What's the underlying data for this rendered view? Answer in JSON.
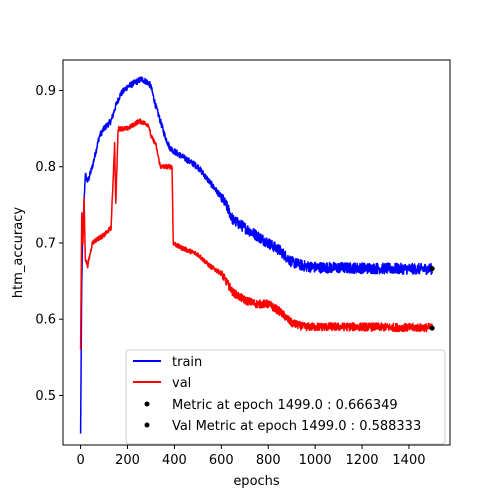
{
  "chart_data": {
    "type": "line",
    "title": "",
    "xlabel": "epochs",
    "ylabel": "htm_accuracy",
    "xlim": [
      -75,
      1575
    ],
    "ylim": [
      0.435,
      0.94
    ],
    "xticks": [
      0,
      200,
      400,
      600,
      800,
      1000,
      1200,
      1400
    ],
    "xtick_labels": [
      "0",
      "200",
      "400",
      "600",
      "800",
      "1000",
      "1200",
      "1400"
    ],
    "yticks": [
      0.5,
      0.6,
      0.7,
      0.8,
      0.9
    ],
    "ytick_labels": [
      "0.5",
      "0.6",
      "0.7",
      "0.8",
      "0.9"
    ],
    "grid": false,
    "legend_position": "lower-right",
    "series": [
      {
        "name": "train",
        "color": "#0000ff",
        "noise": 0.004,
        "points": [
          [
            0,
            0.45
          ],
          [
            5,
            0.65
          ],
          [
            10,
            0.72
          ],
          [
            20,
            0.79
          ],
          [
            30,
            0.78
          ],
          [
            50,
            0.8
          ],
          [
            80,
            0.84
          ],
          [
            100,
            0.85
          ],
          [
            130,
            0.86
          ],
          [
            150,
            0.88
          ],
          [
            170,
            0.895
          ],
          [
            200,
            0.905
          ],
          [
            230,
            0.91
          ],
          [
            260,
            0.915
          ],
          [
            290,
            0.91
          ],
          [
            300,
            0.905
          ],
          [
            320,
            0.88
          ],
          [
            340,
            0.86
          ],
          [
            360,
            0.84
          ],
          [
            380,
            0.825
          ],
          [
            400,
            0.82
          ],
          [
            450,
            0.81
          ],
          [
            500,
            0.8
          ],
          [
            550,
            0.78
          ],
          [
            600,
            0.76
          ],
          [
            620,
            0.75
          ],
          [
            650,
            0.73
          ],
          [
            700,
            0.72
          ],
          [
            750,
            0.71
          ],
          [
            800,
            0.7
          ],
          [
            850,
            0.69
          ],
          [
            900,
            0.675
          ],
          [
            950,
            0.67
          ],
          [
            1000,
            0.668
          ],
          [
            1200,
            0.667
          ],
          [
            1400,
            0.666
          ],
          [
            1499,
            0.666
          ]
        ]
      },
      {
        "name": "val",
        "color": "#ff0000",
        "noise": 0.003,
        "points": [
          [
            0,
            0.56
          ],
          [
            5,
            0.74
          ],
          [
            10,
            0.7
          ],
          [
            15,
            0.76
          ],
          [
            20,
            0.68
          ],
          [
            30,
            0.67
          ],
          [
            50,
            0.7
          ],
          [
            70,
            0.705
          ],
          [
            100,
            0.71
          ],
          [
            130,
            0.72
          ],
          [
            145,
            0.83
          ],
          [
            150,
            0.75
          ],
          [
            160,
            0.85
          ],
          [
            170,
            0.85
          ],
          [
            200,
            0.85
          ],
          [
            250,
            0.86
          ],
          [
            290,
            0.855
          ],
          [
            300,
            0.84
          ],
          [
            320,
            0.83
          ],
          [
            340,
            0.8
          ],
          [
            380,
            0.8
          ],
          [
            390,
            0.8
          ],
          [
            395,
            0.7
          ],
          [
            420,
            0.695
          ],
          [
            460,
            0.69
          ],
          [
            500,
            0.685
          ],
          [
            550,
            0.67
          ],
          [
            600,
            0.66
          ],
          [
            650,
            0.635
          ],
          [
            700,
            0.625
          ],
          [
            750,
            0.62
          ],
          [
            800,
            0.62
          ],
          [
            850,
            0.61
          ],
          [
            900,
            0.595
          ],
          [
            950,
            0.59
          ],
          [
            1000,
            0.59
          ],
          [
            1200,
            0.59
          ],
          [
            1400,
            0.589
          ],
          [
            1499,
            0.589
          ]
        ]
      }
    ],
    "markers": [
      {
        "name": "Metric at epoch 1499.0 : 0.666349",
        "x": 1499,
        "y": 0.666349,
        "color": "#000000"
      },
      {
        "name": "Val Metric at epoch 1499.0 : 0.588333",
        "x": 1499,
        "y": 0.588333,
        "color": "#000000"
      }
    ]
  }
}
